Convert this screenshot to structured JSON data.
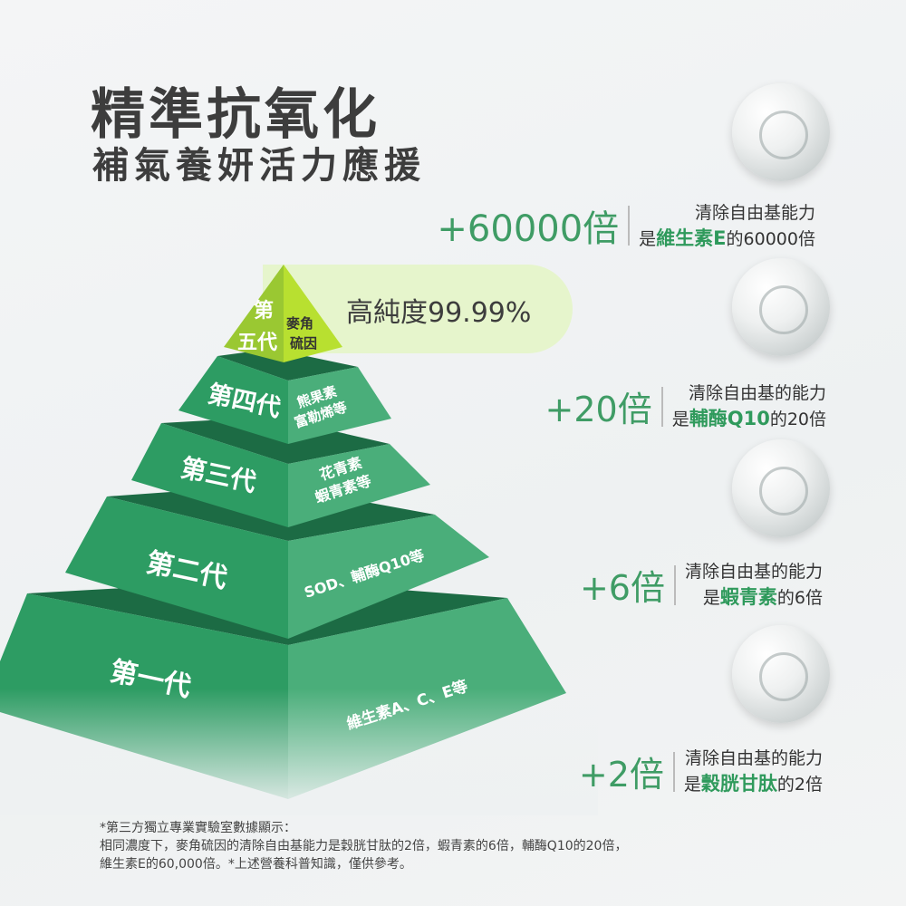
{
  "header": {
    "title": "精準抗氧化",
    "subtitle": "補氣養妍活力應援"
  },
  "pyramid": {
    "tiers": [
      {
        "gen_line1": "第",
        "gen_line2": "五代",
        "ingredient_line1": "麥角",
        "ingredient_line2": "硫因"
      },
      {
        "gen": "第四代",
        "ingredient_line1": "熊果素",
        "ingredient_line2": "富勒烯等"
      },
      {
        "gen": "第三代",
        "ingredient_line1": "花青素",
        "ingredient_line2": "蝦青素等"
      },
      {
        "gen": "第二代",
        "ingredient": "SOD、輔酶Q10等"
      },
      {
        "gen": "第一代",
        "ingredient": "維生素A、C、E等"
      }
    ],
    "purity_label": "高純度99.99%",
    "colors": {
      "top_tier": "#b5dc34",
      "tier_left": "#2d9c63",
      "tier_right": "#4aae7a",
      "tier_top": "#1c6b44",
      "purity_bg": "#e6f5cc"
    }
  },
  "comparisons": [
    {
      "multiplier": "+60000倍",
      "line1": "清除自由基能力",
      "prefix": "是",
      "highlight": "維生素E",
      "suffix": "的60000倍"
    },
    {
      "multiplier": "+20倍",
      "line1": "清除自由基的能力",
      "prefix": "是",
      "highlight": "輔酶Q10",
      "suffix": "的20倍"
    },
    {
      "multiplier": "+6倍",
      "line1": "清除自由基的能力",
      "prefix": "是",
      "highlight": "蝦青素",
      "suffix": "的6倍"
    },
    {
      "multiplier": "+2倍",
      "line1": "清除自由基的能力",
      "prefix": "是",
      "highlight": "穀胱甘肽",
      "suffix": "的2倍"
    }
  ],
  "footnote": {
    "line1": "*第三方獨立專業實驗室數據顯示：",
    "line2": "相同濃度下，麥角硫因的清除自由基能力是穀胱甘肽的2倍，蝦青素的6倍，輔酶Q10的20倍，",
    "line3": "維生素E的60,000倍。*上述營養科普知識，僅供參考。"
  },
  "accent_color": "#3f9c65"
}
